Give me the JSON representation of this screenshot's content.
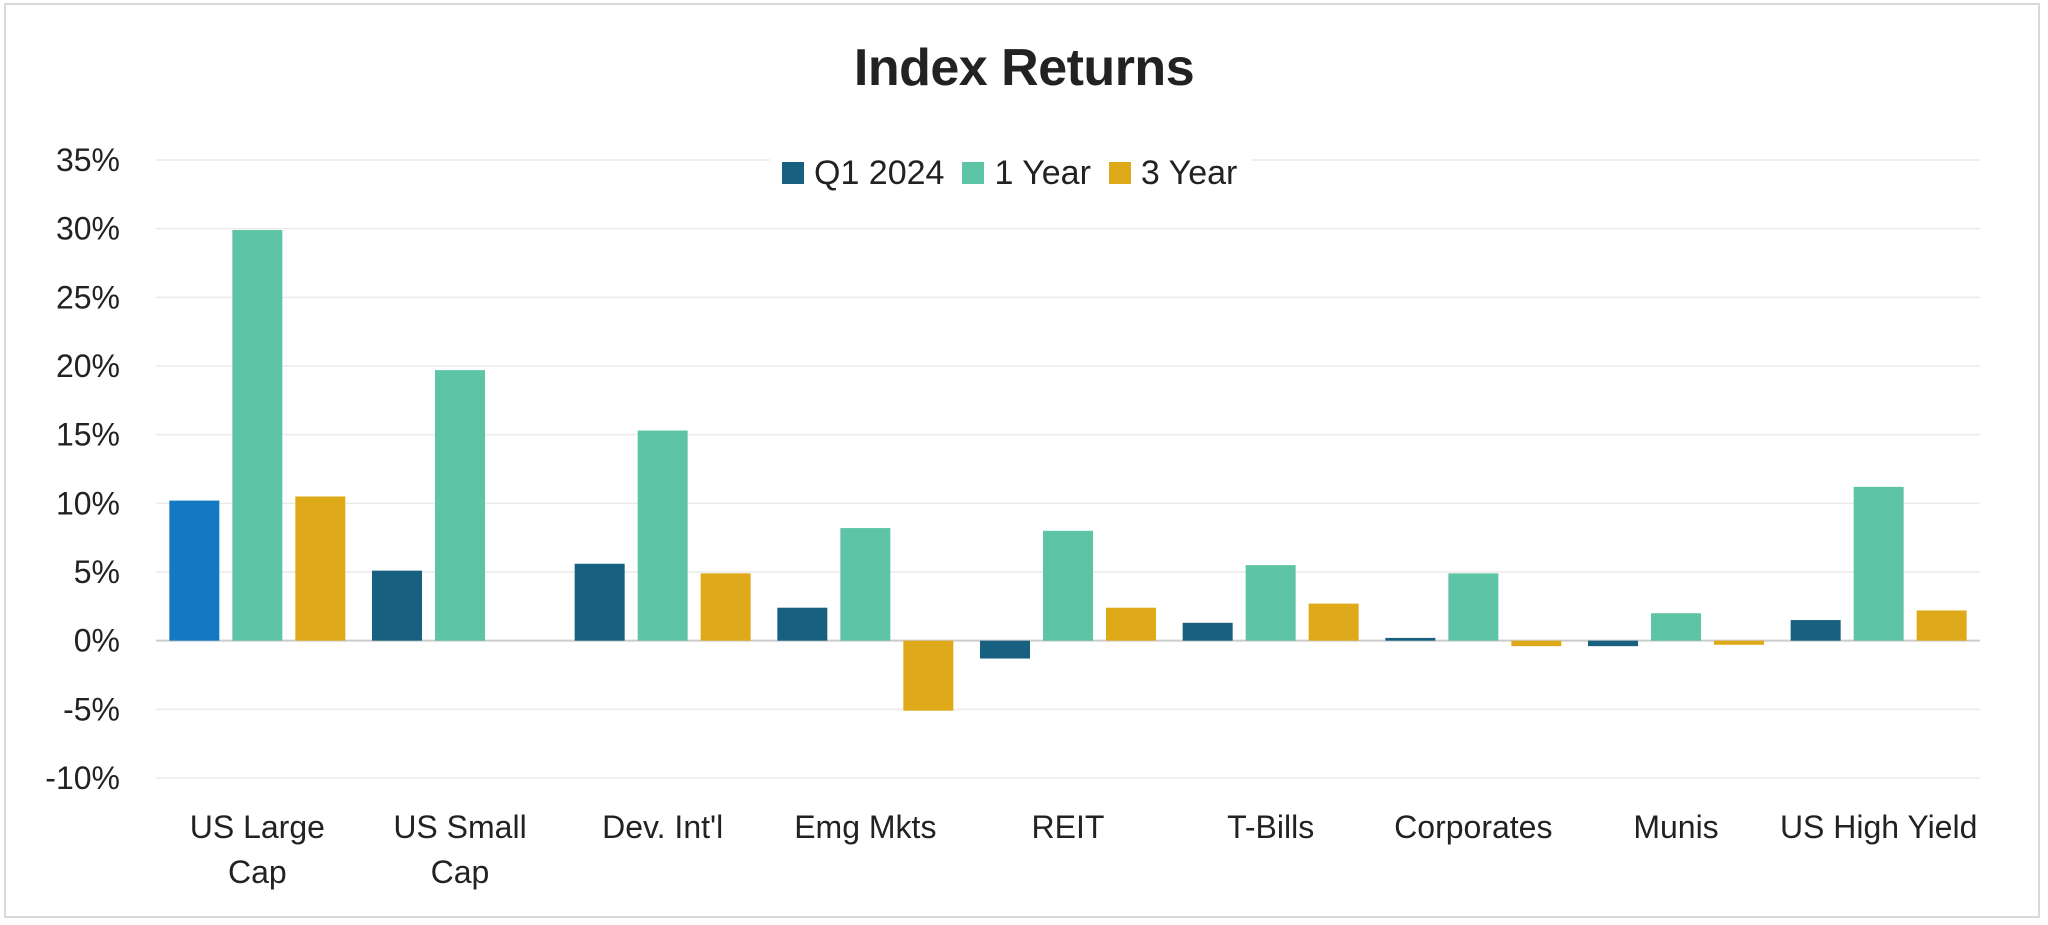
{
  "chart_data": {
    "type": "bar",
    "title": "Index Returns",
    "categories": [
      [
        "US Large",
        "Cap"
      ],
      [
        "US Small",
        "Cap"
      ],
      [
        "Dev. Int'l"
      ],
      [
        "Emg Mkts"
      ],
      [
        "REIT"
      ],
      [
        "T-Bills"
      ],
      [
        "Corporates"
      ],
      [
        "Munis"
      ],
      [
        "US High Yield"
      ]
    ],
    "series": [
      {
        "name": "Q1 2024",
        "color": "#17607f",
        "values": [
          10.2,
          5.1,
          5.6,
          2.4,
          -1.3,
          1.3,
          0.2,
          -0.4,
          1.5
        ]
      },
      {
        "name": "1 Year",
        "color": "#5ec4a6",
        "values": [
          29.9,
          19.7,
          15.3,
          8.2,
          8.0,
          5.5,
          4.9,
          2.0,
          11.2
        ]
      },
      {
        "name": "3 Year",
        "color": "#dfaa1a",
        "values": [
          10.5,
          null,
          4.9,
          -5.1,
          2.4,
          2.7,
          -0.4,
          -0.3,
          2.2
        ]
      }
    ],
    "highlight": {
      "series": 0,
      "category": 0,
      "color": "#1479c2"
    },
    "yticks": [
      "35%",
      "30%",
      "25%",
      "20%",
      "15%",
      "10%",
      "5%",
      "0%",
      "-5%",
      "-10%"
    ],
    "ylim": [
      -10,
      35
    ],
    "ystep": 5,
    "grid": true,
    "legend_position": "top-center",
    "gridline_color": "#eaeaea",
    "zero_line_color": "#cccccc"
  }
}
